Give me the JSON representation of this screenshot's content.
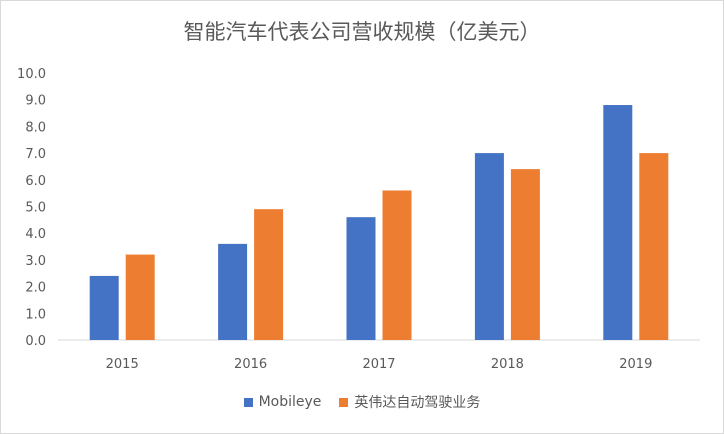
{
  "chart_data": {
    "type": "bar",
    "title": "智能汽车代表公司营收规模（亿美元）",
    "categories": [
      "2015",
      "2016",
      "2017",
      "2018",
      "2019"
    ],
    "series": [
      {
        "name": "Mobileye",
        "color": "#4472c4",
        "values": [
          2.4,
          3.6,
          4.6,
          7.0,
          8.8
        ]
      },
      {
        "name": "英伟达自动驾驶业务",
        "color": "#ed7d31",
        "values": [
          3.2,
          4.9,
          5.6,
          6.4,
          7.0
        ]
      }
    ],
    "ylim": [
      0,
      10
    ],
    "yticks": [
      "0.0",
      "1.0",
      "2.0",
      "3.0",
      "4.0",
      "5.0",
      "6.0",
      "7.0",
      "8.0",
      "9.0",
      "10.0"
    ],
    "grid": false,
    "legend_position": "bottom"
  }
}
